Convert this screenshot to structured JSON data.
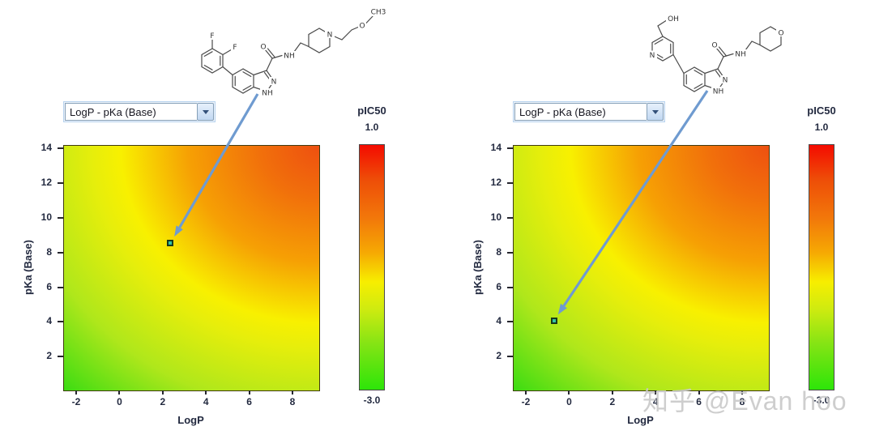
{
  "watermark": "知乎 @Evan hoo",
  "icons": {
    "dropdown_arrow": "chevron-down"
  },
  "panels": [
    {
      "dropdown_value": "LogP - pKa (Base)",
      "xlabel": "LogP",
      "ylabel": "pKa (Base)",
      "colorbar": {
        "title": "pIC50",
        "max_label": "1.0",
        "min_label": "-3.0"
      },
      "molecule_labels": {
        "F1": "F",
        "F2": "F",
        "O_carbonyl": "O",
        "NH_amide": "NH",
        "N_ring": "N",
        "NH_ring": "NH",
        "N_piperidine": "N",
        "O_ether": "O",
        "CH3": "CH3"
      }
    },
    {
      "dropdown_value": "LogP - pKa (Base)",
      "xlabel": "LogP",
      "ylabel": "pKa (Base)",
      "colorbar": {
        "title": "pIC50",
        "max_label": "1.0",
        "min_label": "-3.0"
      },
      "molecule_labels": {
        "OH": "OH",
        "N_pyridine": "N",
        "O_carbonyl": "O",
        "NH_amide": "NH",
        "N_ring": "N",
        "NH_ring": "NH",
        "O_pyran": "O"
      }
    }
  ],
  "chart_data": [
    {
      "type": "heatmap",
      "title": "",
      "xlabel": "LogP",
      "ylabel": "pKa (Base)",
      "xlim": [
        -2.6,
        9.2
      ],
      "ylim": [
        0.1,
        14.2
      ],
      "xticks": [
        -2,
        0,
        2,
        4,
        6,
        8
      ],
      "yticks": [
        14,
        12,
        10,
        8,
        6,
        4,
        2
      ],
      "colorbar": {
        "label": "pIC50",
        "max": 1.0,
        "min": -3.0,
        "gradient_top_to_bottom": [
          "#f40b00",
          "#f2780a",
          "#f6ee00",
          "#2de509"
        ]
      },
      "surface": "pIC50 response surface: highest (red, ~1.0) at high LogP / high pKa (top-right corner), decreasing through orange and a yellow iso-band arcing from ~LogP 0 at pKa 14 to ~LogP 9 at pKa 8, lowest (green, ~-3.0) toward low LogP / low pKa (bottom-left)",
      "points": [
        {
          "x": 2.35,
          "y": 8.55,
          "marker": "teal square"
        }
      ]
    },
    {
      "type": "heatmap",
      "title": "",
      "xlabel": "LogP",
      "ylabel": "pKa (Base)",
      "xlim": [
        -2.6,
        9.2
      ],
      "ylim": [
        0.1,
        14.2
      ],
      "xticks": [
        -2,
        0,
        2,
        4,
        6,
        8
      ],
      "yticks": [
        14,
        12,
        10,
        8,
        6,
        4,
        2
      ],
      "colorbar": {
        "label": "pIC50",
        "max": 1.0,
        "min": -3.0,
        "gradient_top_to_bottom": [
          "#f40b00",
          "#f2780a",
          "#f6ee00",
          "#2de509"
        ]
      },
      "surface": "Same pIC50 response surface as left panel: red/orange at top-right, yellow iso-band arc, green at bottom-left",
      "points": [
        {
          "x": -0.7,
          "y": 4.05,
          "marker": "teal square"
        }
      ]
    }
  ]
}
